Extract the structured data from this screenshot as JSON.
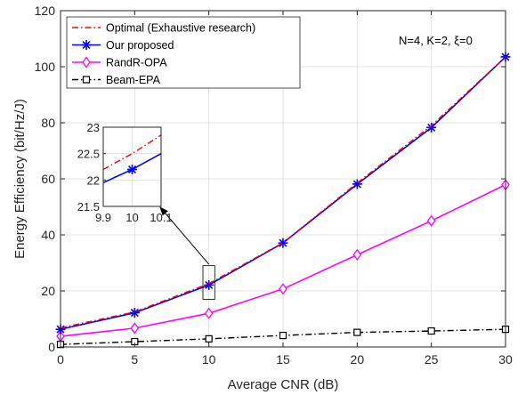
{
  "chart_data": {
    "type": "line",
    "xlabel": "Average CNR (dB)",
    "ylabel": "Energy Efficiency (bit/Hz/J)",
    "xlim": [
      0,
      30
    ],
    "ylim": [
      0,
      120
    ],
    "x_ticks": [
      0,
      5,
      10,
      15,
      20,
      25,
      30
    ],
    "y_ticks": [
      0,
      20,
      40,
      60,
      80,
      100,
      120
    ],
    "grid": true,
    "legend_position": "top-left",
    "annotation": "N=4, K=2, ξ=0",
    "x": [
      0,
      5,
      10,
      15,
      20,
      25,
      30
    ],
    "series": [
      {
        "name": "Optimal (Exhaustive research)",
        "color": "#ff0000",
        "marker": "none",
        "line_style": "dash-dot",
        "values": [
          6.8,
          12.5,
          22.6,
          37.2,
          58.5,
          79.0,
          103.5
        ]
      },
      {
        "name": "Our proposed",
        "color": "#0000ff",
        "marker": "asterisk",
        "line_style": "solid",
        "values": [
          6.3,
          12.2,
          22.1,
          37.1,
          58.1,
          78.3,
          103.5
        ]
      },
      {
        "name": "RandR-OPA",
        "color": "#ff00ff",
        "marker": "diamond",
        "line_style": "solid",
        "values": [
          3.8,
          6.7,
          12.0,
          20.7,
          32.9,
          45.0,
          57.9
        ]
      },
      {
        "name": "Beam-EPA",
        "color": "#000000",
        "marker": "square",
        "line_style": "dash-dot",
        "values": [
          0.9,
          1.9,
          2.9,
          4.1,
          5.2,
          5.7,
          6.3
        ]
      }
    ],
    "inset": {
      "xlim": [
        9.9,
        10.1
      ],
      "ylim": [
        21.5,
        23
      ],
      "x_ticks": [
        "9.9",
        "10",
        "10.1"
      ],
      "y_ticks": [
        "21.5",
        "22",
        "22.5",
        "23"
      ],
      "x": [
        9.9,
        10,
        10.1
      ],
      "series": [
        {
          "name": "Optimal (Exhaustive research)",
          "values": [
            22.2,
            22.5,
            22.85
          ]
        },
        {
          "name": "Our proposed",
          "values": [
            21.95,
            22.2,
            22.5
          ]
        }
      ]
    }
  }
}
